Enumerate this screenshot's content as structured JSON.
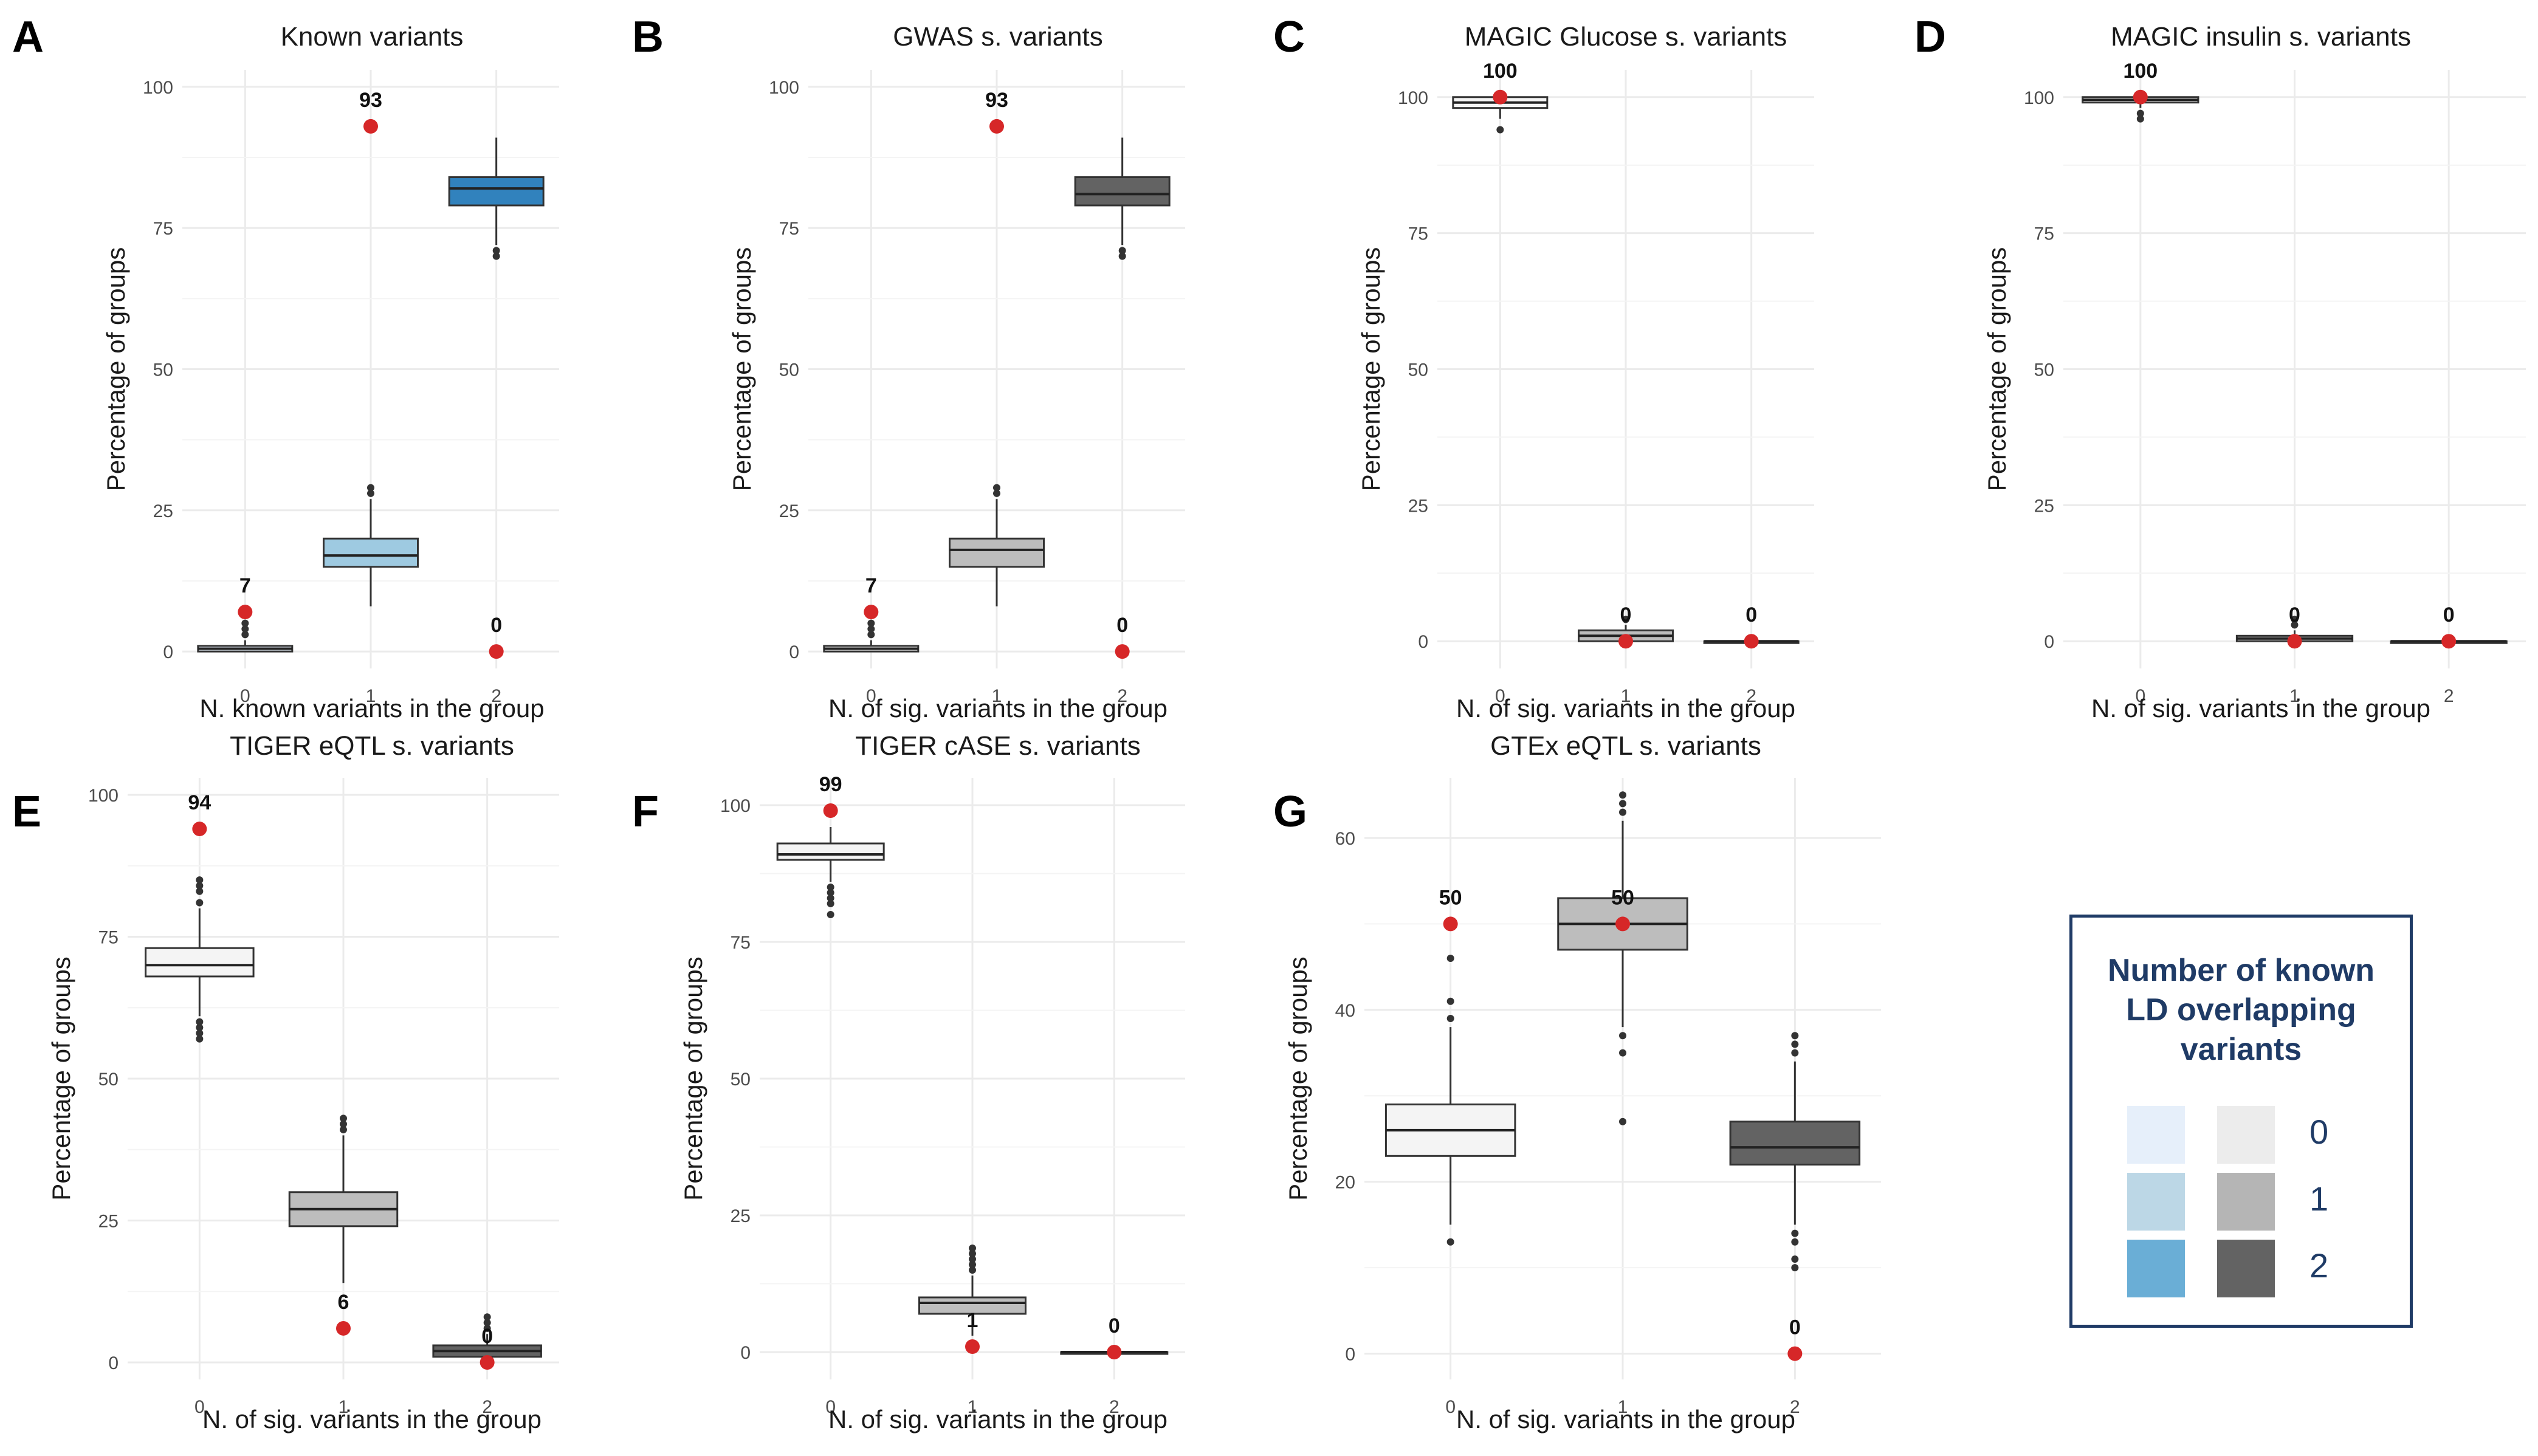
{
  "chart_data": [
    {
      "panel": "A",
      "type": "box",
      "title": "Known variants",
      "xlabel": "N. known variants in the group",
      "ylabel": "Percentage of groups",
      "ylim": [
        -3,
        103
      ],
      "yticks": [
        0,
        25,
        50,
        75,
        100
      ],
      "categories": [
        "0",
        "1",
        "2"
      ],
      "boxes": [
        {
          "q1": 0,
          "median": 0.5,
          "q3": 1,
          "wlo": 0,
          "whi": 2,
          "outliers": [
            3,
            4,
            5
          ],
          "fill": "#e6effa"
        },
        {
          "q1": 15,
          "median": 17,
          "q3": 20,
          "wlo": 8,
          "whi": 27,
          "outliers": [
            28,
            29
          ],
          "fill": "#9ecae1"
        },
        {
          "q1": 79,
          "median": 82,
          "q3": 84,
          "wlo": 72,
          "whi": 91,
          "outliers": [
            70,
            71
          ],
          "fill": "#3182bd"
        }
      ],
      "observed": [
        7,
        93,
        0
      ],
      "observed_labels": [
        "7",
        "93",
        "0"
      ]
    },
    {
      "panel": "B",
      "type": "box",
      "title": "GWAS s. variants",
      "xlabel": "N. of sig. variants in the group",
      "ylabel": "Percentage of groups",
      "ylim": [
        -3,
        103
      ],
      "yticks": [
        0,
        25,
        50,
        75,
        100
      ],
      "categories": [
        "0",
        "1",
        "2"
      ],
      "boxes": [
        {
          "q1": 0,
          "median": 0.5,
          "q3": 1,
          "wlo": 0,
          "whi": 2,
          "outliers": [
            3,
            4,
            5
          ],
          "fill": "#f4f4f4"
        },
        {
          "q1": 15,
          "median": 18,
          "q3": 20,
          "wlo": 8,
          "whi": 27,
          "outliers": [
            28,
            29
          ],
          "fill": "#bdbdbd"
        },
        {
          "q1": 79,
          "median": 81,
          "q3": 84,
          "wlo": 72,
          "whi": 91,
          "outliers": [
            70,
            71
          ],
          "fill": "#636363"
        }
      ],
      "observed": [
        7,
        93,
        0
      ],
      "observed_labels": [
        "7",
        "93",
        "0"
      ]
    },
    {
      "panel": "C",
      "type": "box",
      "title": "MAGIC Glucose s. variants",
      "xlabel": "N. of sig. variants in the group",
      "ylabel": "Percentage of groups",
      "ylim": [
        -5,
        105
      ],
      "yticks": [
        0,
        25,
        50,
        75,
        100
      ],
      "categories": [
        "0",
        "1",
        "2"
      ],
      "boxes": [
        {
          "q1": 98,
          "median": 99,
          "q3": 100,
          "wlo": 96,
          "whi": 100,
          "outliers": [
            94
          ],
          "fill": "#f4f4f4"
        },
        {
          "q1": 0,
          "median": 1,
          "q3": 2,
          "wlo": 0,
          "whi": 3,
          "outliers": [
            4
          ],
          "fill": "#bdbdbd"
        },
        {
          "q1": 0,
          "median": 0,
          "q3": 0,
          "wlo": 0,
          "whi": 0,
          "outliers": [],
          "fill": "#636363"
        }
      ],
      "observed": [
        100,
        0,
        0
      ],
      "observed_labels": [
        "100",
        "0",
        "0"
      ]
    },
    {
      "panel": "D",
      "type": "box",
      "title": "MAGIC insulin s. variants",
      "xlabel": "N. of sig. variants in the group",
      "ylabel": "Percentage of groups",
      "ylim": [
        -5,
        105
      ],
      "yticks": [
        0,
        25,
        50,
        75,
        100
      ],
      "categories": [
        "0",
        "1",
        "2"
      ],
      "boxes": [
        {
          "q1": 99,
          "median": 99.5,
          "q3": 100,
          "wlo": 98,
          "whi": 100,
          "outliers": [
            96,
            97
          ],
          "fill": "#f4f4f4"
        },
        {
          "q1": 0,
          "median": 0.5,
          "q3": 1,
          "wlo": 0,
          "whi": 2,
          "outliers": [
            3,
            4
          ],
          "fill": "#bdbdbd"
        },
        {
          "q1": 0,
          "median": 0,
          "q3": 0,
          "wlo": 0,
          "whi": 0,
          "outliers": [],
          "fill": "#636363"
        }
      ],
      "observed": [
        100,
        0,
        0
      ],
      "observed_labels": [
        "100",
        "0",
        "0"
      ]
    },
    {
      "panel": "E",
      "type": "box",
      "title": "TIGER eQTL s. variants",
      "xlabel": "N. of sig. variants in the group",
      "ylabel": "Percentage of groups",
      "ylim": [
        -3,
        103
      ],
      "yticks": [
        0,
        25,
        50,
        75,
        100
      ],
      "categories": [
        "0",
        "1",
        "2"
      ],
      "boxes": [
        {
          "q1": 68,
          "median": 70,
          "q3": 73,
          "wlo": 61,
          "whi": 80,
          "outliers": [
            57,
            58,
            59,
            60,
            81,
            83,
            84,
            85
          ],
          "fill": "#f4f4f4"
        },
        {
          "q1": 24,
          "median": 27,
          "q3": 30,
          "wlo": 14,
          "whi": 40,
          "outliers": [
            41,
            42,
            43
          ],
          "fill": "#bdbdbd"
        },
        {
          "q1": 1,
          "median": 2,
          "q3": 3,
          "wlo": 0,
          "whi": 5,
          "outliers": [
            6,
            7,
            8
          ],
          "fill": "#636363"
        }
      ],
      "observed": [
        94,
        6,
        0
      ],
      "observed_labels": [
        "94",
        "6",
        "0"
      ]
    },
    {
      "panel": "F",
      "type": "box",
      "title": "TIGER cASE s. variants",
      "xlabel": "N. of sig. variants in the group",
      "ylabel": "Percentage of groups",
      "ylim": [
        -5,
        105
      ],
      "yticks": [
        0,
        25,
        50,
        75,
        100
      ],
      "categories": [
        "0",
        "1",
        "2"
      ],
      "boxes": [
        {
          "q1": 90,
          "median": 91,
          "q3": 93,
          "wlo": 86,
          "whi": 96,
          "outliers": [
            80,
            82,
            83,
            84,
            85
          ],
          "fill": "#f4f4f4"
        },
        {
          "q1": 7,
          "median": 9,
          "q3": 10,
          "wlo": 3,
          "whi": 14,
          "outliers": [
            15,
            16,
            17,
            18,
            19
          ],
          "fill": "#bdbdbd"
        },
        {
          "q1": 0,
          "median": 0,
          "q3": 0,
          "wlo": 0,
          "whi": 1,
          "outliers": [],
          "fill": "#636363"
        }
      ],
      "observed": [
        99,
        1,
        0
      ],
      "observed_labels": [
        "99",
        "1",
        "0"
      ]
    },
    {
      "panel": "G",
      "type": "box",
      "title": "GTEx eQTL s. variants",
      "xlabel": "N. of sig. variants in the group",
      "ylabel": "Percentage of groups",
      "ylim": [
        -3,
        67
      ],
      "yticks": [
        0,
        20,
        40,
        60
      ],
      "categories": [
        "0",
        "1",
        "2"
      ],
      "boxes": [
        {
          "q1": 23,
          "median": 26,
          "q3": 29,
          "wlo": 15,
          "whi": 38,
          "outliers": [
            13,
            39,
            41,
            46
          ],
          "fill": "#f4f4f4"
        },
        {
          "q1": 47,
          "median": 50,
          "q3": 53,
          "wlo": 38,
          "whi": 62,
          "outliers": [
            27,
            35,
            37,
            63,
            64,
            65
          ],
          "fill": "#bdbdbd"
        },
        {
          "q1": 22,
          "median": 24,
          "q3": 27,
          "wlo": 15,
          "whi": 34,
          "outliers": [
            10,
            11,
            13,
            14,
            35,
            36,
            37
          ],
          "fill": "#636363"
        }
      ],
      "observed": [
        50,
        50,
        0
      ],
      "observed_labels": [
        "50",
        "50",
        "0"
      ]
    }
  ],
  "legend": {
    "title_lines": [
      "Number of known",
      "LD overlapping",
      "variants"
    ],
    "items": [
      {
        "label": "0",
        "blue": "#e6effa",
        "gray": "#ececec"
      },
      {
        "label": "1",
        "blue": "#bcd7e6",
        "gray": "#b5b5b5"
      },
      {
        "label": "2",
        "blue": "#6aaed6",
        "gray": "#636363"
      }
    ]
  },
  "colors": {
    "observed_point": "#d62728",
    "grid": "#ebebeb",
    "legend_border": "#1f3b66",
    "median": "#222222"
  }
}
